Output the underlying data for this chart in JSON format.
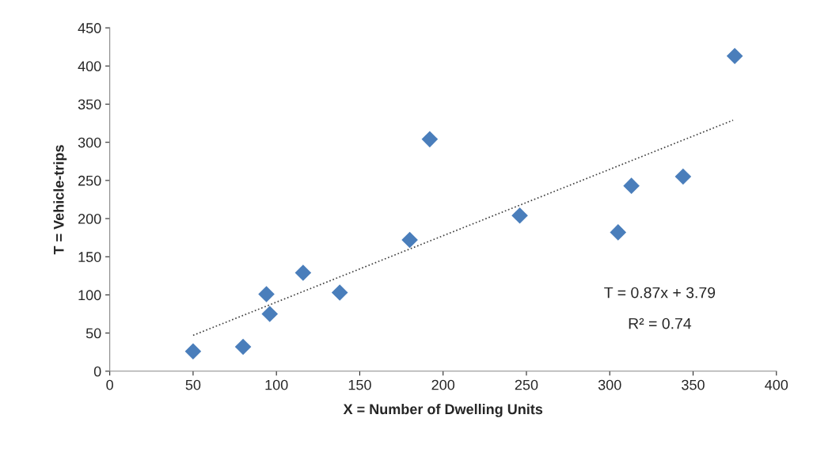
{
  "chart_data": {
    "type": "scatter",
    "xlabel": "X = Number of Dwelling Units",
    "ylabel": "T = Vehicle-trips",
    "xlim": [
      0,
      400
    ],
    "xticks": [
      0,
      50,
      100,
      150,
      200,
      250,
      300,
      350,
      400
    ],
    "ylim": [
      0,
      450
    ],
    "yticks": [
      0,
      50,
      100,
      150,
      200,
      250,
      300,
      350,
      400,
      450
    ],
    "grid": false,
    "legend": false,
    "marker": "diamond",
    "series": [
      {
        "color": "#4a7ebb",
        "x": [
          50,
          80,
          94,
          96,
          116,
          138,
          180,
          192,
          246,
          305,
          313,
          344,
          375
        ],
        "values": [
          26,
          32,
          101,
          75,
          129,
          103,
          172,
          304,
          204,
          182,
          243,
          255,
          413
        ]
      },
      {
        "type": "line",
        "color": "#404040",
        "line_style": "dotted",
        "marker": "none",
        "x": [
          50,
          374
        ],
        "values": [
          47,
          329
        ]
      }
    ],
    "annotations": [
      "T = 0.87x + 3.79",
      "R² = 0.74"
    ]
  }
}
